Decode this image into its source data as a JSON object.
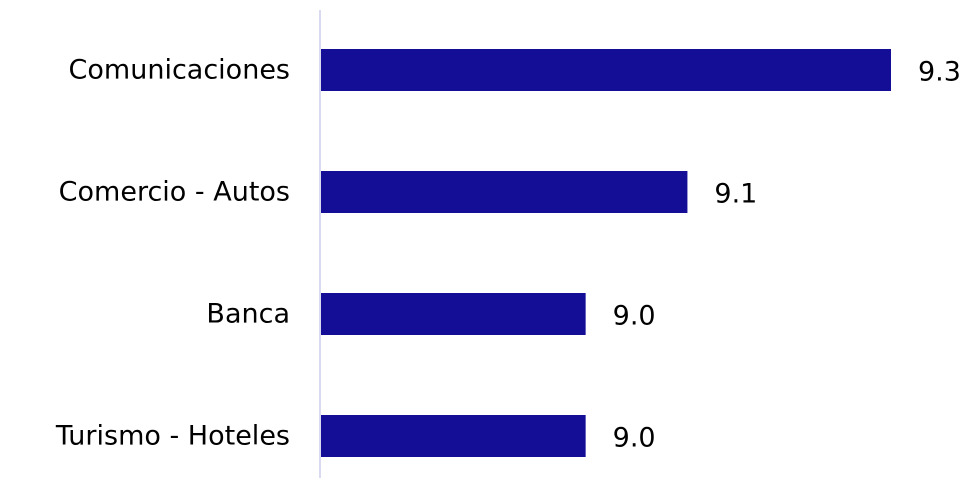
{
  "chart_data": {
    "type": "bar",
    "orientation": "horizontal",
    "title": "",
    "xlabel": "",
    "ylabel": "",
    "categories": [
      "Comunicaciones",
      "Comercio - Autos",
      "Banca",
      "Turismo - Hoteles"
    ],
    "values": [
      9.3,
      9.1,
      9.0,
      9.0
    ],
    "value_labels": [
      "9.3",
      "9.1",
      "9.0",
      "9.0"
    ],
    "xlim": [
      8.74,
      9.3
    ],
    "grid": false,
    "legend": "none",
    "colors": {
      "bar": "#140D96",
      "axis": "#D9D9F0",
      "text": "#000000"
    }
  }
}
